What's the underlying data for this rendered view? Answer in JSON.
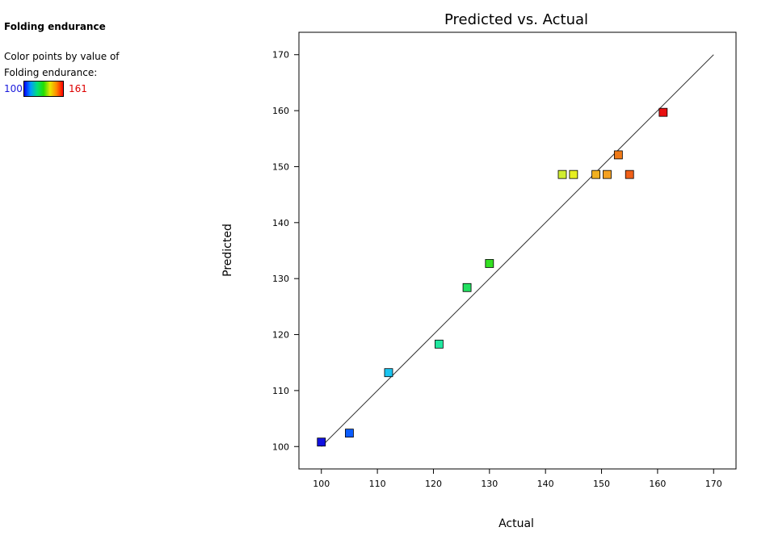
{
  "sidebar": {
    "title": "Folding endurance",
    "desc_line1": "Color points by value of",
    "desc_line2": "Folding endurance:",
    "legend_min": "100",
    "legend_max": "161"
  },
  "chart_data": {
    "type": "scatter",
    "title": "Predicted vs. Actual",
    "xlabel": "Actual",
    "ylabel": "Predicted",
    "xlim": [
      96,
      174
    ],
    "ylim": [
      96,
      174
    ],
    "xticks": [
      100,
      110,
      120,
      130,
      140,
      150,
      160,
      170
    ],
    "yticks": [
      100,
      110,
      120,
      130,
      140,
      150,
      160,
      170
    ],
    "grid": false,
    "reference_line": {
      "from": [
        100,
        100
      ],
      "to": [
        170,
        170
      ]
    },
    "color_scale": {
      "min": 100,
      "max": 161
    },
    "points": [
      {
        "x": 100,
        "y": 100.8,
        "color": "#1010e0"
      },
      {
        "x": 105,
        "y": 102.4,
        "color": "#0a5cff"
      },
      {
        "x": 112,
        "y": 113.2,
        "color": "#1ac4f0"
      },
      {
        "x": 121,
        "y": 118.3,
        "color": "#20e8a0"
      },
      {
        "x": 126,
        "y": 128.4,
        "color": "#22e060"
      },
      {
        "x": 130,
        "y": 132.7,
        "color": "#33e022"
      },
      {
        "x": 143,
        "y": 148.6,
        "color": "#d0ee30"
      },
      {
        "x": 145,
        "y": 148.6,
        "color": "#e6ee22"
      },
      {
        "x": 149,
        "y": 148.6,
        "color": "#f0b020"
      },
      {
        "x": 151,
        "y": 148.6,
        "color": "#f4a020"
      },
      {
        "x": 153,
        "y": 152.1,
        "color": "#f07a18"
      },
      {
        "x": 155,
        "y": 148.6,
        "color": "#f06018"
      },
      {
        "x": 161,
        "y": 159.7,
        "color": "#e81010"
      }
    ]
  }
}
